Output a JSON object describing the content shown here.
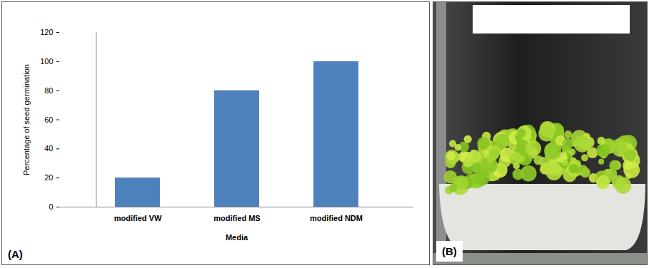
{
  "chart_data": {
    "type": "bar",
    "categories": [
      "modified VW",
      "modified MS",
      "modified NDM"
    ],
    "values": [
      20,
      80,
      100
    ],
    "color": "#4f81bd",
    "x_label": "Media",
    "y_label": "Percentage of seed germination",
    "ylim": [
      0,
      120
    ],
    "yticks": [
      0,
      20,
      40,
      60,
      80,
      100,
      120
    ],
    "grid": false
  },
  "panels": [
    {
      "label": "(A)"
    },
    {
      "label": "(B)"
    }
  ]
}
